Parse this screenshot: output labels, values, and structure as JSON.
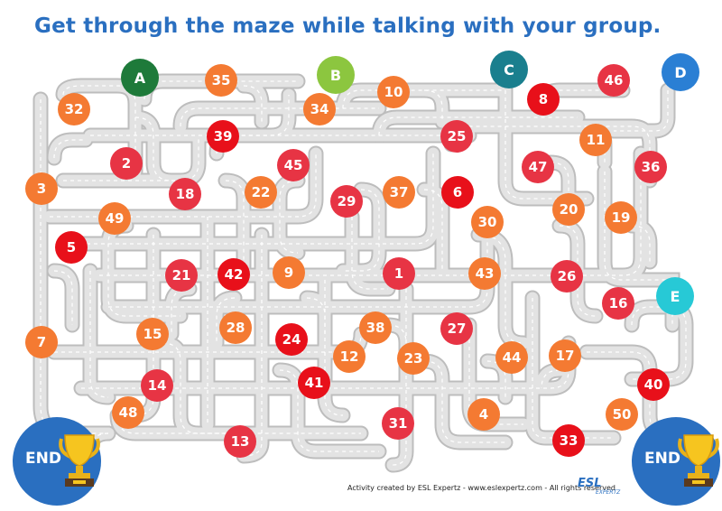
{
  "title": "Get through the maze while talking with your group.",
  "footer": "Activity created by ESL Expertz - www.eslexpertz.com - All rights reserved",
  "brand": {
    "main": "ESL",
    "sub": "EXPERTZ"
  },
  "end_label": "END",
  "colors": {
    "road": "#d8d8d8",
    "road_edge": "#bdbdbd",
    "red": "#e8101a",
    "orange": "#f47a32",
    "crimson": "#e73444"
  },
  "starts": [
    {
      "label": "A",
      "color": "#1e7a3a"
    },
    {
      "label": "B",
      "color": "#8cc63f"
    },
    {
      "label": "C",
      "color": "#1a7f8e"
    },
    {
      "label": "D",
      "color": "#2a7fd4"
    },
    {
      "label": "E",
      "color": "#27c9d6"
    }
  ],
  "numbers": [
    "32",
    "35",
    "34",
    "10",
    "8",
    "46",
    "3",
    "2",
    "39",
    "25",
    "11",
    "45",
    "47",
    "36",
    "18",
    "22",
    "29",
    "37",
    "6",
    "20",
    "49",
    "30",
    "19",
    "5",
    "21",
    "42",
    "9",
    "1",
    "43",
    "26",
    "16",
    "15",
    "28",
    "38",
    "27",
    "7",
    "24",
    "12",
    "23",
    "44",
    "17",
    "14",
    "41",
    "40",
    "48",
    "31",
    "4",
    "50",
    "13",
    "33"
  ]
}
